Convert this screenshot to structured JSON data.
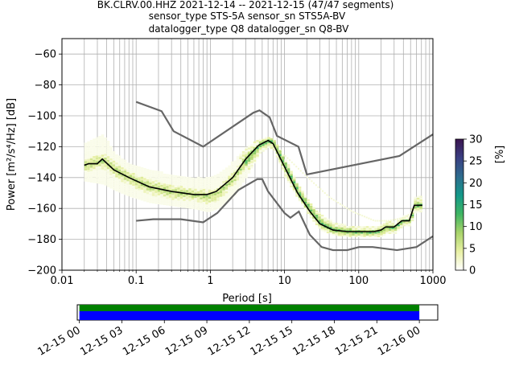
{
  "chart_data": {
    "type": "heatmap",
    "title_lines": [
      "BK.CLRV.00.HHZ   2021-12-14 -- 2021-12-15  (47/47 segments)",
      "sensor_type STS-5A sensor_sn STS5A-BV",
      "datalogger_type Q8 datalogger_sn Q8-BV"
    ],
    "xlabel": "Period [s]",
    "ylabel": "Power [m²/s⁴/Hz] [dB]",
    "xscale": "log",
    "xlim": [
      0.01,
      1000
    ],
    "ylim": [
      -200,
      -50
    ],
    "grid": true,
    "xticks": [
      {
        "value": 0.01,
        "label": "0.01"
      },
      {
        "value": 0.1,
        "label": "0.1"
      },
      {
        "value": 1,
        "label": "1"
      },
      {
        "value": 10,
        "label": "10"
      },
      {
        "value": 100,
        "label": "100"
      },
      {
        "value": 1000,
        "label": "1000"
      }
    ],
    "yticks": [
      {
        "value": -60,
        "label": "−60"
      },
      {
        "value": -80,
        "label": "−80"
      },
      {
        "value": -100,
        "label": "−100"
      },
      {
        "value": -120,
        "label": "−120"
      },
      {
        "value": -140,
        "label": "−140"
      },
      {
        "value": -160,
        "label": "−160"
      },
      {
        "value": -180,
        "label": "−180"
      },
      {
        "value": -200,
        "label": "−200"
      }
    ],
    "nhnm": [
      [
        0.1,
        -91
      ],
      [
        0.22,
        -97
      ],
      [
        0.32,
        -110
      ],
      [
        0.8,
        -120
      ],
      [
        3.8,
        -98
      ],
      [
        4.6,
        -96.5
      ],
      [
        6.3,
        -101
      ],
      [
        7.9,
        -113
      ],
      [
        15.4,
        -120
      ],
      [
        20,
        -138
      ],
      [
        354,
        -126
      ],
      [
        1000,
        -112
      ]
    ],
    "nlnm": [
      [
        0.1,
        -168
      ],
      [
        0.17,
        -167
      ],
      [
        0.4,
        -167
      ],
      [
        0.8,
        -169
      ],
      [
        1.24,
        -163
      ],
      [
        2.4,
        -148
      ],
      [
        4.3,
        -141
      ],
      [
        5,
        -141
      ],
      [
        6,
        -149
      ],
      [
        10,
        -163
      ],
      [
        12,
        -166
      ],
      [
        15.6,
        -162
      ],
      [
        21.9,
        -177
      ],
      [
        31.6,
        -185
      ],
      [
        45,
        -187
      ],
      [
        70,
        -187
      ],
      [
        101,
        -185
      ],
      [
        154,
        -185
      ],
      [
        328,
        -187
      ],
      [
        600,
        -185
      ],
      [
        1000,
        -178
      ]
    ],
    "mean_psd": [
      [
        0.02,
        -132
      ],
      [
        0.023,
        -131
      ],
      [
        0.03,
        -131
      ],
      [
        0.035,
        -128
      ],
      [
        0.05,
        -135
      ],
      [
        0.08,
        -140
      ],
      [
        0.15,
        -146
      ],
      [
        0.3,
        -149
      ],
      [
        0.6,
        -151
      ],
      [
        0.9,
        -151
      ],
      [
        1.2,
        -149
      ],
      [
        2,
        -140
      ],
      [
        3,
        -128
      ],
      [
        4.5,
        -119
      ],
      [
        6,
        -116
      ],
      [
        7,
        -118
      ],
      [
        10,
        -133
      ],
      [
        15,
        -150
      ],
      [
        22,
        -162
      ],
      [
        30,
        -170
      ],
      [
        45,
        -174
      ],
      [
        70,
        -175
      ],
      [
        100,
        -175
      ],
      [
        160,
        -175
      ],
      [
        200,
        -174
      ],
      [
        230,
        -172
      ],
      [
        300,
        -172
      ],
      [
        380,
        -168
      ],
      [
        480,
        -168
      ],
      [
        560,
        -158
      ],
      [
        720,
        -158
      ]
    ],
    "density_bands": [
      {
        "periods": [
          0.02,
          0.035,
          0.05,
          0.08,
          0.15,
          0.3,
          0.6,
          0.9,
          1.2,
          2,
          3,
          4.5,
          6,
          7,
          10,
          15,
          22,
          30,
          45,
          70,
          100,
          160,
          200,
          230,
          300,
          380,
          480,
          560,
          720
        ],
        "upper": [
          -118,
          -112,
          -124,
          -131,
          -135,
          -138,
          -140,
          -140,
          -138,
          -129,
          -120,
          -115,
          -113,
          -115,
          -128,
          -145,
          -157,
          -164,
          -169,
          -171,
          -172,
          -172,
          -170,
          -168,
          -169,
          -165,
          -165,
          -152,
          -152
        ],
        "lower": [
          -142,
          -144,
          -148,
          -152,
          -156,
          -158,
          -160,
          -162,
          -160,
          -152,
          -139,
          -124,
          -120,
          -122,
          -140,
          -154,
          -166,
          -174,
          -177,
          -178,
          -178,
          -178,
          -178,
          -176,
          -176,
          -171,
          -171,
          -162,
          -162
        ],
        "level": 4
      },
      {
        "periods": [
          0.02,
          0.035,
          0.05,
          0.08,
          0.15,
          0.3,
          0.6,
          0.9,
          1.2,
          2,
          3,
          4.5,
          6,
          7,
          10,
          15,
          22,
          30,
          45,
          70,
          100,
          160,
          200,
          230,
          300,
          380,
          480,
          560,
          720
        ],
        "upper": [
          -128,
          -124,
          -130,
          -136,
          -141,
          -145,
          -147,
          -148,
          -146,
          -136,
          -125,
          -117,
          -114,
          -116,
          -130,
          -147,
          -159,
          -167,
          -172,
          -173,
          -174,
          -174,
          -173,
          -171,
          -171,
          -167,
          -167,
          -156,
          -156
        ],
        "lower": [
          -136,
          -134,
          -140,
          -145,
          -151,
          -154,
          -155,
          -157,
          -155,
          -145,
          -132,
          -121,
          -118,
          -120,
          -136,
          -153,
          -164,
          -172,
          -176,
          -177,
          -177,
          -177,
          -176,
          -174,
          -174,
          -169,
          -169,
          -160,
          -160
        ],
        "level": 12
      }
    ],
    "sparse_band": {
      "periods": [
        10,
        20,
        40,
        80,
        160,
        250,
        400,
        600
      ],
      "values": [
        -126,
        -140,
        -153,
        -162,
        -168,
        -168,
        -166,
        -160
      ],
      "level": 2
    },
    "colorbar": {
      "label": "[%]",
      "min": 0,
      "max": 30,
      "ticks": [
        {
          "value": 0,
          "label": "0"
        },
        {
          "value": 5,
          "label": "5"
        },
        {
          "value": 10,
          "label": "10"
        },
        {
          "value": 15,
          "label": "15"
        },
        {
          "value": 20,
          "label": "20"
        },
        {
          "value": 25,
          "label": "25"
        },
        {
          "value": 30,
          "label": "30"
        }
      ],
      "colors": [
        "#fffffe",
        "#e8f0a4",
        "#a8d36a",
        "#3fb563",
        "#14998a",
        "#2e6c8e",
        "#3a3f82",
        "#3b1550"
      ]
    },
    "data_colors": {
      "nhnm_nlnm": "#666666",
      "mean": "#000000",
      "coverage_available": "#008000",
      "coverage_used": "#0000ff"
    },
    "timeline": {
      "labels": [
        "12-15 00",
        "12-15 03",
        "12-15 06",
        "12-15 09",
        "12-15 12",
        "12-15 15",
        "12-15 18",
        "12-15 21",
        "12-16 00"
      ],
      "start_hour": -0.15,
      "end_hour": 25.3,
      "coverage_from_hour": 0,
      "coverage_to_hour": 24
    }
  }
}
